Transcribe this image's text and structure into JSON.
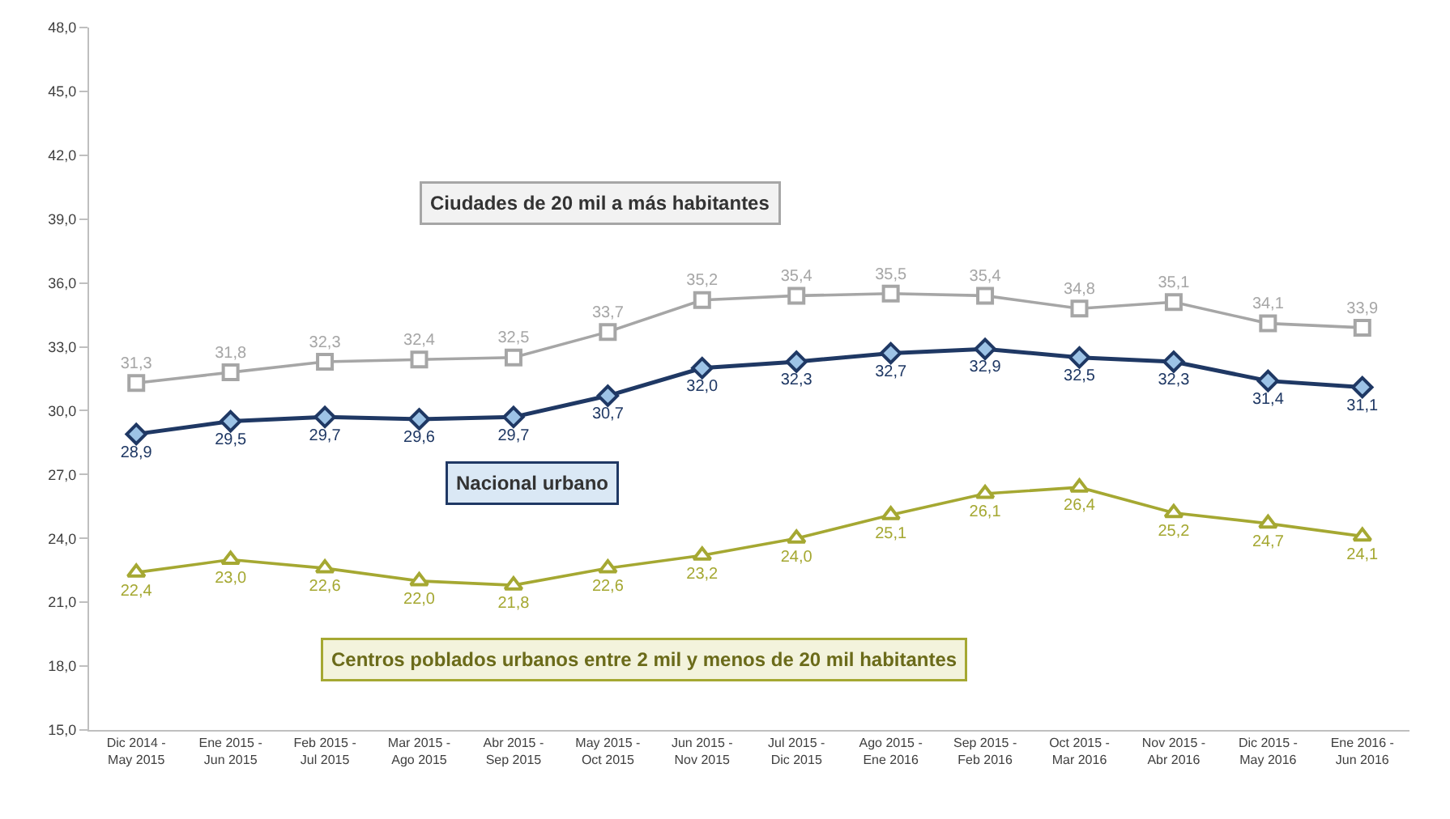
{
  "chart_data": {
    "type": "line",
    "categories": [
      "Dic 2014 - May 2015",
      "Ene 2015 - Jun 2015",
      "Feb 2015 - Jul 2015",
      "Mar 2015 - Ago 2015",
      "Abr 2015 - Sep 2015",
      "May 2015 - Oct 2015",
      "Jun 2015 - Nov 2015",
      "Jul 2015 - Dic 2015",
      "Ago 2015 - Ene 2016",
      "Sep 2015 - Feb 2016",
      "Oct 2015 - Mar 2016",
      "Nov 2015 - Abr 2016",
      "Dic 2015 - May 2016",
      "Ene 2016 - Jun 2016"
    ],
    "series": [
      {
        "name": "Ciudades de 20 mil a más habitantes",
        "color": "#a6a6a6",
        "marker": "square",
        "values": [
          31.3,
          31.8,
          32.3,
          32.4,
          32.5,
          33.7,
          35.2,
          35.4,
          35.5,
          35.4,
          34.8,
          35.1,
          34.1,
          33.9
        ],
        "value_labels": [
          "31,3",
          "31,8",
          "32,3",
          "32,4",
          "32,5",
          "33,7",
          "35,2",
          "35,4",
          "35,5",
          "35,4",
          "34,8",
          "35,1",
          "34,1",
          "33,9"
        ]
      },
      {
        "name": "Nacional urbano",
        "color": "#1f3864",
        "marker": "diamond",
        "values": [
          28.9,
          29.5,
          29.7,
          29.6,
          29.7,
          30.7,
          32.0,
          32.3,
          32.7,
          32.9,
          32.5,
          32.3,
          31.4,
          31.1
        ],
        "value_labels": [
          "28,9",
          "29,5",
          "29,7",
          "29,6",
          "29,7",
          "30,7",
          "32,0",
          "32,3",
          "32,7",
          "32,9",
          "32,5",
          "32,3",
          "31,4",
          "31,1"
        ]
      },
      {
        "name": "Centros poblados urbanos entre 2 mil y menos de 20 mil habitantes",
        "color": "#a5a832",
        "marker": "triangle",
        "values": [
          22.4,
          23.0,
          22.6,
          22.0,
          21.8,
          22.6,
          23.2,
          24.0,
          25.1,
          26.1,
          26.4,
          25.2,
          24.7,
          24.1
        ],
        "value_labels": [
          "22,4",
          "23,0",
          "22,6",
          "22,0",
          "21,8",
          "22,6",
          "23,2",
          "24,0",
          "25,1",
          "26,1",
          "26,4",
          "25,2",
          "24,7",
          "24,1"
        ]
      }
    ],
    "ylim": [
      15,
      48
    ],
    "yticks": [
      {
        "value": 15,
        "label": "15,0"
      },
      {
        "value": 18,
        "label": "18,0"
      },
      {
        "value": 21,
        "label": "21,0"
      },
      {
        "value": 24,
        "label": "24,0"
      },
      {
        "value": 27,
        "label": "27,0"
      },
      {
        "value": 30,
        "label": "30,0"
      },
      {
        "value": 33,
        "label": "33,0"
      },
      {
        "value": 36,
        "label": "36,0"
      },
      {
        "value": 39,
        "label": "39,0"
      },
      {
        "value": 42,
        "label": "42,0"
      },
      {
        "value": 45,
        "label": "45,0"
      },
      {
        "value": 48,
        "label": "48,0"
      }
    ],
    "legend": false,
    "line_style": "solid"
  }
}
